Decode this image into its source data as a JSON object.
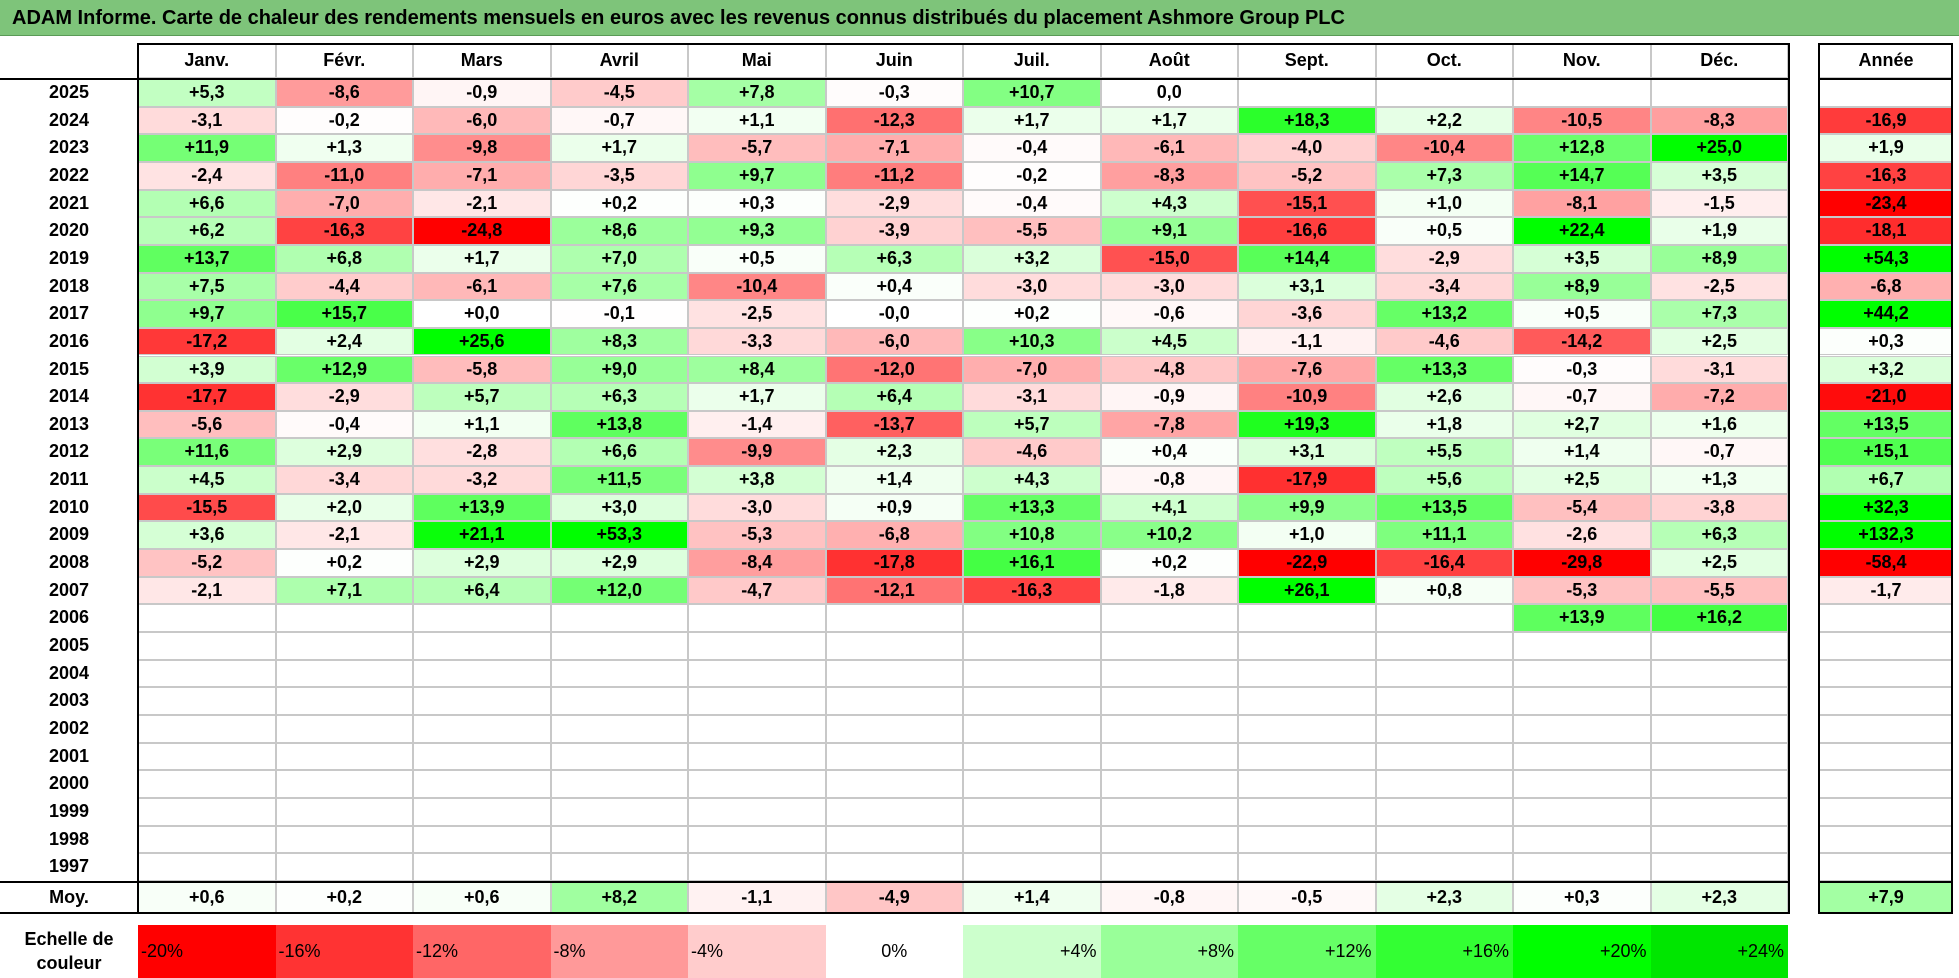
{
  "title": "ADAM Informe. Carte de chaleur des rendements mensuels en euros avec les revenus connus distribués du placement Ashmore Group PLC",
  "chart_data": {
    "type": "heatmap",
    "columns": [
      "Janv.",
      "Févr.",
      "Mars",
      "Avril",
      "Mai",
      "Juin",
      "Juil.",
      "Août",
      "Sept.",
      "Oct.",
      "Nov.",
      "Déc."
    ],
    "year_column_label": "Année",
    "average_row_label": "Moy.",
    "color_scale_label": "Echelle de couleur",
    "rows": [
      {
        "year": "2025",
        "months": [
          "+5,3",
          "-8,6",
          "-0,9",
          "-4,5",
          "+7,8",
          "-0,3",
          "+10,7",
          "0,0",
          "",
          "",
          "",
          ""
        ],
        "annual": ""
      },
      {
        "year": "2024",
        "months": [
          "-3,1",
          "-0,2",
          "-6,0",
          "-0,7",
          "+1,1",
          "-12,3",
          "+1,7",
          "+1,7",
          "+18,3",
          "+2,2",
          "-10,5",
          "-8,3"
        ],
        "annual": "-16,9"
      },
      {
        "year": "2023",
        "months": [
          "+11,9",
          "+1,3",
          "-9,8",
          "+1,7",
          "-5,7",
          "-7,1",
          "-0,4",
          "-6,1",
          "-4,0",
          "-10,4",
          "+12,8",
          "+25,0"
        ],
        "annual": "+1,9"
      },
      {
        "year": "2022",
        "months": [
          "-2,4",
          "-11,0",
          "-7,1",
          "-3,5",
          "+9,7",
          "-11,2",
          "-0,2",
          "-8,3",
          "-5,2",
          "+7,3",
          "+14,7",
          "+3,5"
        ],
        "annual": "-16,3"
      },
      {
        "year": "2021",
        "months": [
          "+6,6",
          "-7,0",
          "-2,1",
          "+0,2",
          "+0,3",
          "-2,9",
          "-0,4",
          "+4,3",
          "-15,1",
          "+1,0",
          "-8,1",
          "-1,5"
        ],
        "annual": "-23,4"
      },
      {
        "year": "2020",
        "months": [
          "+6,2",
          "-16,3",
          "-24,8",
          "+8,6",
          "+9,3",
          "-3,9",
          "-5,5",
          "+9,1",
          "-16,6",
          "+0,5",
          "+22,4",
          "+1,9"
        ],
        "annual": "-18,1"
      },
      {
        "year": "2019",
        "months": [
          "+13,7",
          "+6,8",
          "+1,7",
          "+7,0",
          "+0,5",
          "+6,3",
          "+3,2",
          "-15,0",
          "+14,4",
          "-2,9",
          "+3,5",
          "+8,9"
        ],
        "annual": "+54,3"
      },
      {
        "year": "2018",
        "months": [
          "+7,5",
          "-4,4",
          "-6,1",
          "+7,6",
          "-10,4",
          "+0,4",
          "-3,0",
          "-3,0",
          "+3,1",
          "-3,4",
          "+8,9",
          "-2,5"
        ],
        "annual": "-6,8"
      },
      {
        "year": "2017",
        "months": [
          "+9,7",
          "+15,7",
          "+0,0",
          "-0,1",
          "-2,5",
          "-0,0",
          "+0,2",
          "-0,6",
          "-3,6",
          "+13,2",
          "+0,5",
          "+7,3"
        ],
        "annual": "+44,2"
      },
      {
        "year": "2016",
        "months": [
          "-17,2",
          "+2,4",
          "+25,6",
          "+8,3",
          "-3,3",
          "-6,0",
          "+10,3",
          "+4,5",
          "-1,1",
          "-4,6",
          "-14,2",
          "+2,5"
        ],
        "annual": "+0,3"
      },
      {
        "year": "2015",
        "months": [
          "+3,9",
          "+12,9",
          "-5,8",
          "+9,0",
          "+8,4",
          "-12,0",
          "-7,0",
          "-4,8",
          "-7,6",
          "+13,3",
          "-0,3",
          "-3,1"
        ],
        "annual": "+3,2"
      },
      {
        "year": "2014",
        "months": [
          "-17,7",
          "-2,9",
          "+5,7",
          "+6,3",
          "+1,7",
          "+6,4",
          "-3,1",
          "-0,9",
          "-10,9",
          "+2,6",
          "-0,7",
          "-7,2"
        ],
        "annual": "-21,0"
      },
      {
        "year": "2013",
        "months": [
          "-5,6",
          "-0,4",
          "+1,1",
          "+13,8",
          "-1,4",
          "-13,7",
          "+5,7",
          "-7,8",
          "+19,3",
          "+1,8",
          "+2,7",
          "+1,6"
        ],
        "annual": "+13,5"
      },
      {
        "year": "2012",
        "months": [
          "+11,6",
          "+2,9",
          "-2,8",
          "+6,6",
          "-9,9",
          "+2,3",
          "-4,6",
          "+0,4",
          "+3,1",
          "+5,5",
          "+1,4",
          "-0,7"
        ],
        "annual": "+15,1"
      },
      {
        "year": "2011",
        "months": [
          "+4,5",
          "-3,4",
          "-3,2",
          "+11,5",
          "+3,8",
          "+1,4",
          "+4,3",
          "-0,8",
          "-17,9",
          "+5,6",
          "+2,5",
          "+1,3"
        ],
        "annual": "+6,7"
      },
      {
        "year": "2010",
        "months": [
          "-15,5",
          "+2,0",
          "+13,9",
          "+3,0",
          "-3,0",
          "+0,9",
          "+13,3",
          "+4,1",
          "+9,9",
          "+13,5",
          "-5,4",
          "-3,8"
        ],
        "annual": "+32,3"
      },
      {
        "year": "2009",
        "months": [
          "+3,6",
          "-2,1",
          "+21,1",
          "+53,3",
          "-5,3",
          "-6,8",
          "+10,8",
          "+10,2",
          "+1,0",
          "+11,1",
          "-2,6",
          "+6,3"
        ],
        "annual": "+132,3"
      },
      {
        "year": "2008",
        "months": [
          "-5,2",
          "+0,2",
          "+2,9",
          "+2,9",
          "-8,4",
          "-17,8",
          "+16,1",
          "+0,2",
          "-22,9",
          "-16,4",
          "-29,8",
          "+2,5"
        ],
        "annual": "-58,4"
      },
      {
        "year": "2007",
        "months": [
          "-2,1",
          "+7,1",
          "+6,4",
          "+12,0",
          "-4,7",
          "-12,1",
          "-16,3",
          "-1,8",
          "+26,1",
          "+0,8",
          "-5,3",
          "-5,5"
        ],
        "annual": "-1,7"
      },
      {
        "year": "2006",
        "months": [
          "",
          "",
          "",
          "",
          "",
          "",
          "",
          "",
          "",
          "",
          "+13,9",
          "+16,2"
        ],
        "annual": ""
      },
      {
        "year": "2005",
        "months": [
          "",
          "",
          "",
          "",
          "",
          "",
          "",
          "",
          "",
          "",
          "",
          ""
        ],
        "annual": ""
      },
      {
        "year": "2004",
        "months": [
          "",
          "",
          "",
          "",
          "",
          "",
          "",
          "",
          "",
          "",
          "",
          ""
        ],
        "annual": ""
      },
      {
        "year": "2003",
        "months": [
          "",
          "",
          "",
          "",
          "",
          "",
          "",
          "",
          "",
          "",
          "",
          ""
        ],
        "annual": ""
      },
      {
        "year": "2002",
        "months": [
          "",
          "",
          "",
          "",
          "",
          "",
          "",
          "",
          "",
          "",
          "",
          ""
        ],
        "annual": ""
      },
      {
        "year": "2001",
        "months": [
          "",
          "",
          "",
          "",
          "",
          "",
          "",
          "",
          "",
          "",
          "",
          ""
        ],
        "annual": ""
      },
      {
        "year": "2000",
        "months": [
          "",
          "",
          "",
          "",
          "",
          "",
          "",
          "",
          "",
          "",
          "",
          ""
        ],
        "annual": ""
      },
      {
        "year": "1999",
        "months": [
          "",
          "",
          "",
          "",
          "",
          "",
          "",
          "",
          "",
          "",
          "",
          ""
        ],
        "annual": ""
      },
      {
        "year": "1998",
        "months": [
          "",
          "",
          "",
          "",
          "",
          "",
          "",
          "",
          "",
          "",
          "",
          ""
        ],
        "annual": ""
      },
      {
        "year": "1997",
        "months": [
          "",
          "",
          "",
          "",
          "",
          "",
          "",
          "",
          "",
          "",
          "",
          ""
        ],
        "annual": ""
      }
    ],
    "averages": [
      "+0,6",
      "+0,2",
      "+0,6",
      "+8,2",
      "-1,1",
      "-4,9",
      "+1,4",
      "-0,8",
      "-0,5",
      "+2,3",
      "+0,3",
      "+2,3"
    ],
    "annual_average": "+7,9",
    "scale": [
      {
        "label": "-20%",
        "value": -20,
        "color": "#ff0000"
      },
      {
        "label": "-16%",
        "value": -16,
        "color": "#ff3333"
      },
      {
        "label": "-12%",
        "value": -12,
        "color": "#ff6666"
      },
      {
        "label": "-8%",
        "value": -8,
        "color": "#ff9999"
      },
      {
        "label": "-4%",
        "value": -4,
        "color": "#ffcccc"
      },
      {
        "label": "0%",
        "value": 0,
        "color": "#ffffff"
      },
      {
        "label": "+4%",
        "value": 4,
        "color": "#ccffcc"
      },
      {
        "label": "+8%",
        "value": 8,
        "color": "#99ff99"
      },
      {
        "label": "+12%",
        "value": 12,
        "color": "#66ff66"
      },
      {
        "label": "+16%",
        "value": 16,
        "color": "#33ff33"
      },
      {
        "label": "+20%",
        "value": 20,
        "color": "#00ff00"
      },
      {
        "label": "+24%",
        "value": 24,
        "color": "#00e600"
      }
    ]
  }
}
